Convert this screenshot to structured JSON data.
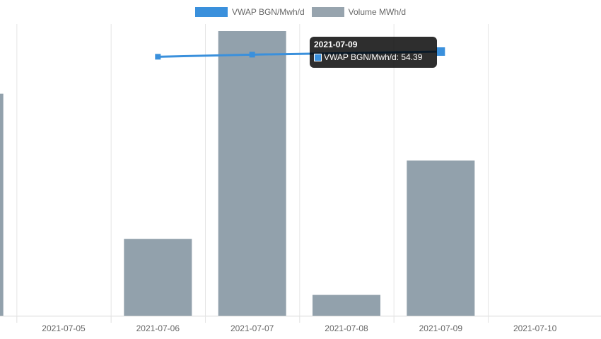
{
  "chart_data": {
    "type": "bar",
    "categories": [
      "",
      "2021-07-05",
      "2021-07-06",
      "2021-07-07",
      "2021-07-08",
      "2021-07-09",
      "2021-07-10"
    ],
    "series": [
      {
        "name": "VWAP BGN/Mwh/d",
        "type": "line",
        "color": "#3a90dc",
        "values": [
          null,
          null,
          53.9,
          54.1,
          null,
          54.39,
          null
        ]
      },
      {
        "name": "Volume MWh/d",
        "type": "bar",
        "color": "#8c9ca8",
        "values": [
          7800,
          0,
          2700,
          10000,
          730,
          5450,
          0
        ]
      }
    ],
    "ylim_volume": [
      0,
      10000
    ],
    "ylim_vwap": [
      0,
      60
    ],
    "grid": true,
    "legend": "top-center"
  },
  "tooltip": {
    "title": "2021-07-09",
    "label": "VWAP BGN/Mwh/d: 54.39",
    "color": "#3a90dc"
  }
}
